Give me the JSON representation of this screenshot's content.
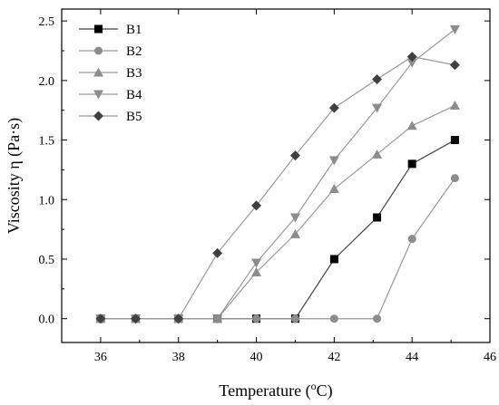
{
  "chart_data": {
    "type": "line",
    "title": "",
    "xlabel": "Temperature (",
    "xlabel_sup": "o",
    "xlabel_suffix": "C)",
    "ylabel": "Viscosity η (Pa·s)",
    "xlim": [
      35,
      46
    ],
    "ylim": [
      -0.2,
      2.6
    ],
    "xticks": [
      36,
      38,
      40,
      42,
      44,
      46
    ],
    "yticks": [
      0.0,
      0.5,
      1.0,
      1.5,
      2.0,
      2.5
    ],
    "ytick_labels": [
      "0.0",
      "0.5",
      "1.0",
      "1.5",
      "2.0",
      "2.5"
    ],
    "grid": false,
    "legend_position": "top-left",
    "series": [
      {
        "name": "B1",
        "marker": "square",
        "color": "#000000",
        "line_color": "#444444",
        "x": [
          36,
          36.9,
          38,
          39,
          40,
          41,
          42,
          43.1,
          44,
          45.1
        ],
        "y": [
          0,
          0,
          0,
          0,
          0,
          0,
          0.5,
          0.85,
          1.3,
          1.5
        ]
      },
      {
        "name": "B2",
        "marker": "circle",
        "color": "#8c8c8c",
        "line_color": "#9a9a9a",
        "x": [
          36,
          36.9,
          38,
          39,
          40,
          41,
          42,
          43.1,
          44,
          45.1
        ],
        "y": [
          0,
          0,
          0,
          0,
          0,
          0,
          0,
          0,
          0.67,
          1.18
        ]
      },
      {
        "name": "B3",
        "marker": "triangle-up",
        "color": "#8c8c8c",
        "line_color": "#9a9a9a",
        "x": [
          36,
          36.9,
          38,
          39,
          40,
          41,
          42,
          43.1,
          44,
          45.1
        ],
        "y": [
          0,
          0,
          0,
          0,
          0.39,
          0.71,
          1.09,
          1.38,
          1.62,
          1.79
        ]
      },
      {
        "name": "B4",
        "marker": "triangle-down",
        "color": "#8c8c8c",
        "line_color": "#9a9a9a",
        "x": [
          36,
          36.9,
          38,
          39,
          40,
          41,
          42,
          43.1,
          44,
          45.1
        ],
        "y": [
          0,
          0,
          0,
          0,
          0.47,
          0.85,
          1.33,
          1.77,
          2.15,
          2.43
        ]
      },
      {
        "name": "B5",
        "marker": "diamond",
        "color": "#404040",
        "line_color": "#9a9a9a",
        "x": [
          36,
          36.9,
          38,
          39,
          40,
          41,
          42,
          43.1,
          44,
          45.1
        ],
        "y": [
          0,
          0,
          0,
          0.55,
          0.95,
          1.37,
          1.77,
          2.01,
          2.2,
          2.13
        ]
      }
    ]
  }
}
